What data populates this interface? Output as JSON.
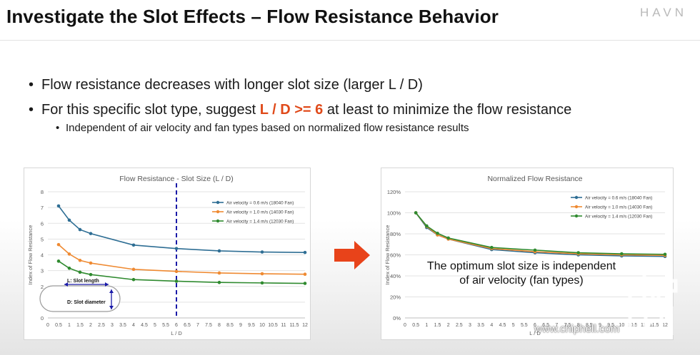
{
  "slide": {
    "title": "Investigate the Slot Effects – Flow Resistance Behavior",
    "brand": "HAVN",
    "bullets": {
      "b1": "Flow resistance decreases with longer slot size (larger L / D)",
      "b2_pre": "For this specific slot type, suggest ",
      "b2_highlight": "L / D >= 6",
      "b2_post": " at least to minimize the flow resistance",
      "b3": "Independent of air velocity and fan types based on normalized flow resistance results"
    },
    "overlay_text_1": "The optimum slot size is independent",
    "overlay_text_2": "of air velocity (fan types)",
    "watermark_url": "www.chiphell.com",
    "watermark_logo_text": "chip hell"
  },
  "colors": {
    "highlight": "#e04a1a",
    "arrow": "#e8431a",
    "series_blue": "#2e6e94",
    "series_orange": "#ef8a32",
    "series_green": "#2f8a2f",
    "marker_line": "#1a1aa8"
  },
  "chart_data": [
    {
      "type": "line",
      "title": "Flow Resistance - Slot Size (L / D)",
      "xlabel": "L / D",
      "ylabel": "Index of Flow Resistance",
      "xlim": [
        0,
        12
      ],
      "ylim": [
        0,
        8
      ],
      "x_ticks": [
        "0",
        "0.5",
        "1",
        "1.5",
        "2",
        "2.5",
        "3",
        "3.5",
        "4",
        "4.5",
        "5",
        "5.5",
        "6",
        "6.5",
        "7",
        "7.5",
        "8",
        "8.5",
        "9",
        "9.5",
        "10",
        "10.5",
        "11",
        "11.5",
        "12"
      ],
      "y_ticks": [
        "0",
        "1",
        "2",
        "3",
        "4",
        "5",
        "6",
        "7",
        "8"
      ],
      "grid": true,
      "legend_position": "top-right",
      "vertical_marker_x": 6,
      "annotation_length": "L: Slot length",
      "annotation_diameter": "D: Slot diameter",
      "x": [
        0.5,
        1,
        1.5,
        2,
        4,
        6,
        8,
        10,
        12
      ],
      "series": [
        {
          "name": "Air velocity = 0.6 m/s (18040 Fan)",
          "color": "#2e6e94",
          "values": [
            7.1,
            6.2,
            5.6,
            5.35,
            4.62,
            4.4,
            4.25,
            4.18,
            4.15
          ]
        },
        {
          "name": "Air velocity = 1.0 m/s (14030 Fan)",
          "color": "#ef8a32",
          "values": [
            4.65,
            4.05,
            3.65,
            3.48,
            3.08,
            2.95,
            2.85,
            2.8,
            2.77
          ]
        },
        {
          "name": "Air velocity = 1.4 m/s (12030 Fan)",
          "color": "#2f8a2f",
          "values": [
            3.6,
            3.15,
            2.9,
            2.75,
            2.43,
            2.33,
            2.25,
            2.22,
            2.19
          ]
        }
      ]
    },
    {
      "type": "line",
      "title": "Normalized Flow Resistance",
      "xlabel": "L / D",
      "ylabel": "Index of Flow Resistance",
      "xlim": [
        0,
        12
      ],
      "ylim": [
        0,
        120
      ],
      "x_ticks": [
        "0",
        "0.5",
        "1",
        "1.5",
        "2",
        "2.5",
        "3",
        "3.5",
        "4",
        "4.5",
        "5",
        "5.5",
        "6",
        "6.5",
        "7",
        "7.5",
        "8",
        "8.5",
        "9",
        "9.5",
        "10",
        "10.5",
        "11",
        "11.5",
        "12"
      ],
      "y_ticks": [
        "0%",
        "20%",
        "40%",
        "60%",
        "80%",
        "100%",
        "120%"
      ],
      "grid": true,
      "legend_position": "top-right",
      "x": [
        0.5,
        1,
        1.5,
        2,
        4,
        6,
        8,
        10,
        12
      ],
      "series": [
        {
          "name": "Air velocity = 0.6 m/s (18040 Fan)",
          "color": "#2e6e94",
          "values": [
            100,
            86,
            79,
            75,
            65,
            62,
            60,
            59,
            58.5
          ]
        },
        {
          "name": "Air velocity = 1.0 m/s (14030 Fan)",
          "color": "#ef8a32",
          "values": [
            100,
            87,
            79,
            75,
            66,
            63,
            61,
            60,
            59.5
          ]
        },
        {
          "name": "Air velocity = 1.4 m/s (12030 Fan)",
          "color": "#2f8a2f",
          "values": [
            100,
            87.5,
            80.5,
            76,
            67,
            64.5,
            62,
            61,
            60.5
          ]
        }
      ]
    }
  ]
}
